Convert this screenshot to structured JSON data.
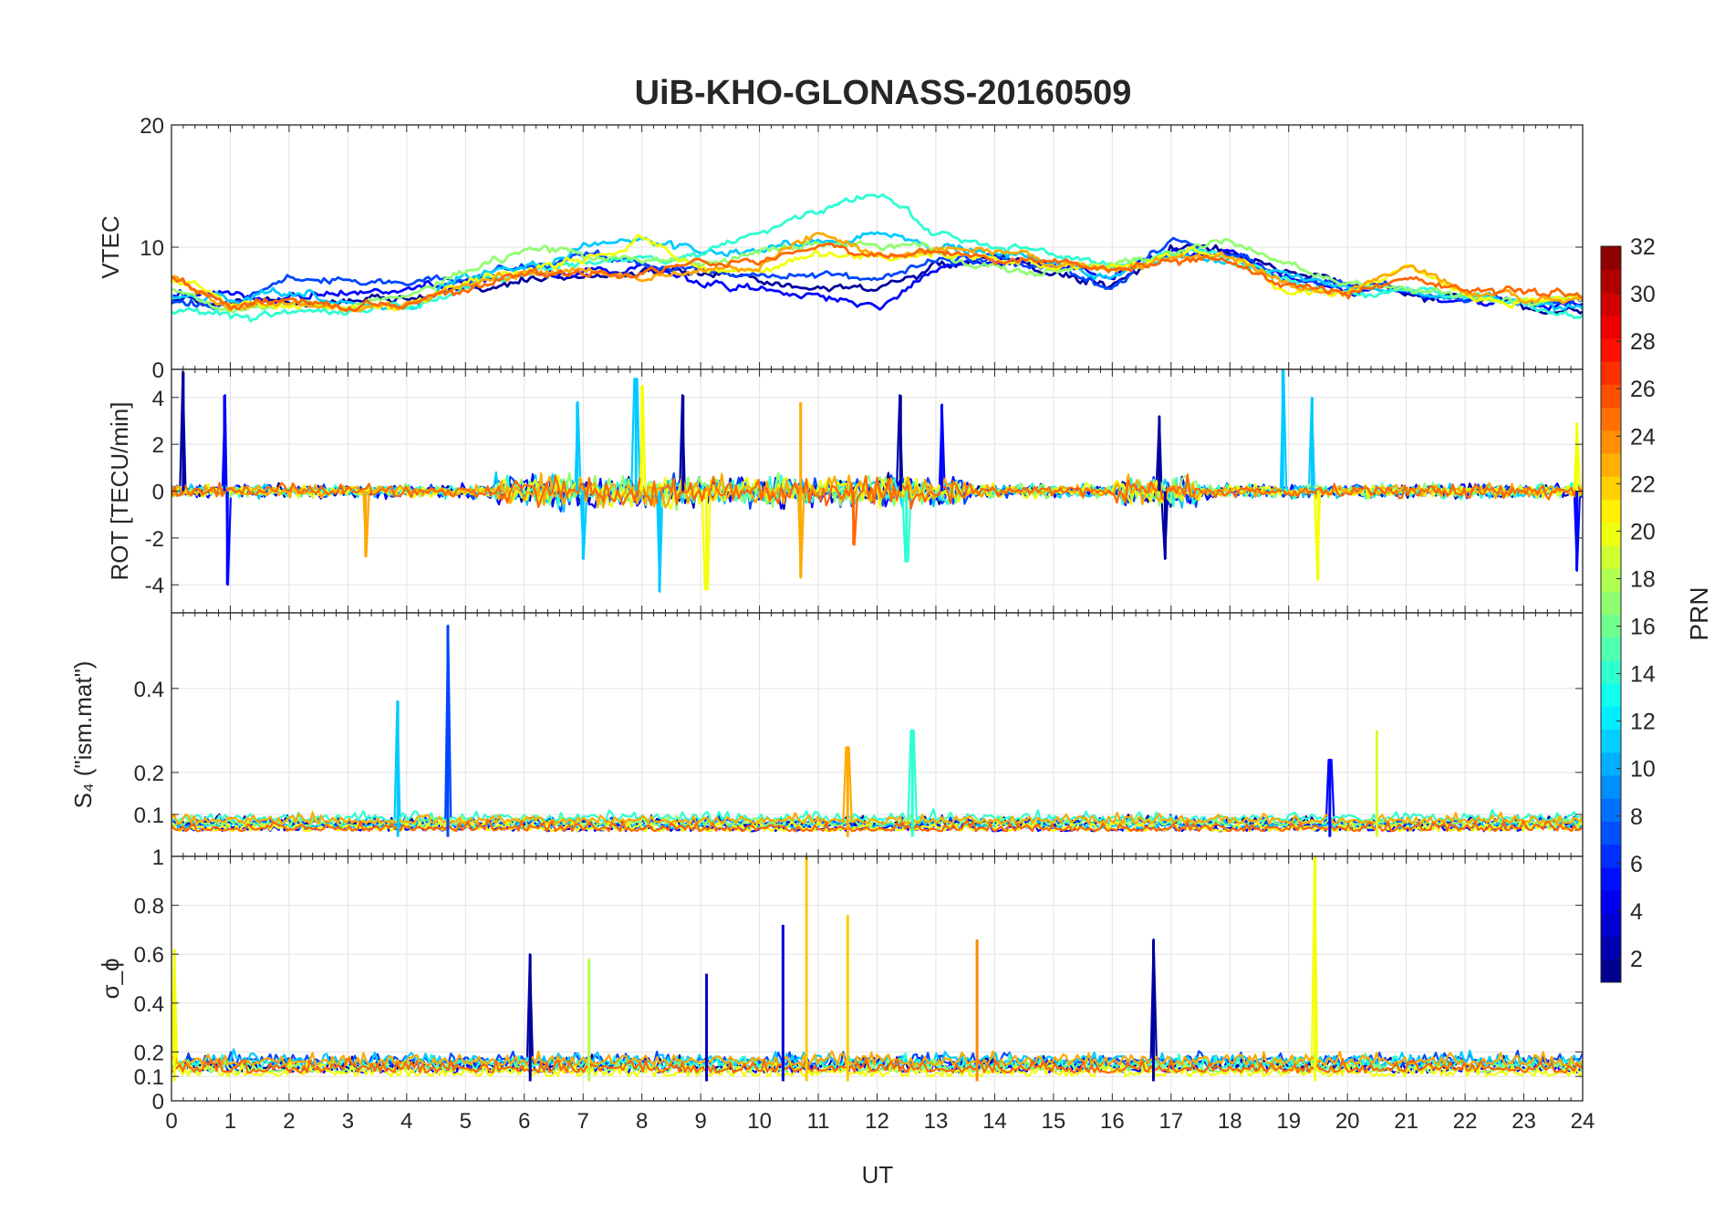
{
  "chart_data": {
    "type": "line",
    "title": "UiB-KHO-GLONASS-20160509",
    "xlabel": "UT",
    "xlim": [
      0,
      24
    ],
    "xticks": [
      0,
      1,
      2,
      3,
      4,
      5,
      6,
      7,
      8,
      9,
      10,
      11,
      12,
      13,
      14,
      15,
      16,
      17,
      18,
      19,
      20,
      21,
      22,
      23,
      24
    ],
    "grid": true,
    "panels": [
      {
        "id": "vtec",
        "ylabel": "VTEC",
        "ylim": [
          0,
          20
        ],
        "yticks": [
          0,
          10,
          20
        ],
        "series": [
          {
            "name": "PRN 2",
            "prn": 2,
            "x": [
              0,
              1,
              2,
              3,
              4,
              5,
              6,
              7,
              8,
              9,
              10,
              11,
              12,
              13,
              14,
              15,
              16,
              17,
              18,
              19,
              20,
              21,
              22,
              23,
              24
            ],
            "values": [
              5.5,
              5.2,
              5.4,
              5.6,
              5.9,
              6.4,
              7.2,
              7.9,
              8.2,
              7.8,
              7.2,
              6.6,
              6.2,
              8.4,
              9.2,
              8.0,
              7.0,
              10.0,
              9.6,
              8.0,
              6.8,
              6.2,
              5.6,
              5.0,
              4.6
            ]
          },
          {
            "name": "PRN 5",
            "prn": 5,
            "x": [
              0,
              1,
              2,
              3,
              4,
              5,
              6,
              7,
              8,
              9,
              10,
              11,
              12,
              13,
              14,
              15,
              16,
              17,
              18,
              19,
              20,
              21,
              22,
              23,
              24
            ],
            "values": [
              6.0,
              5.8,
              5.9,
              6.1,
              6.5,
              7.0,
              7.5,
              8.1,
              8.4,
              7.3,
              6.4,
              6.0,
              5.4,
              8.2,
              9.0,
              8.4,
              7.6,
              9.8,
              9.4,
              7.5,
              6.6,
              6.0,
              5.5,
              5.4,
              5.0
            ]
          },
          {
            "name": "PRN 7",
            "prn": 7,
            "x": [
              0,
              1,
              2,
              3,
              4,
              5,
              6,
              7,
              8,
              9,
              10,
              11,
              12,
              13,
              14,
              15,
              16,
              17,
              18,
              19,
              20,
              21,
              22,
              23,
              24
            ],
            "values": [
              5.8,
              5.4,
              7.4,
              7.6,
              7.0,
              7.2,
              8.4,
              9.4,
              8.8,
              8.0,
              7.6,
              7.9,
              7.2,
              8.8,
              9.0,
              8.2,
              6.8,
              10.6,
              9.4,
              7.6,
              7.0,
              6.4,
              5.8,
              5.6,
              5.4
            ]
          },
          {
            "name": "PRN 11",
            "prn": 11,
            "x": [
              0,
              1,
              2,
              3,
              4,
              5,
              6,
              7,
              8,
              9,
              10,
              11,
              12,
              13,
              14,
              15,
              16,
              17,
              18,
              19,
              20,
              21,
              22,
              23,
              24
            ],
            "values": [
              5.9,
              5.7,
              5.9,
              5.6,
              5.2,
              7.6,
              8.4,
              9.8,
              10.8,
              9.6,
              10.0,
              10.5,
              11.0,
              10.3,
              9.6,
              8.6,
              7.6,
              9.6,
              9.0,
              7.6,
              6.6,
              6.6,
              6.0,
              5.6,
              5.2
            ]
          },
          {
            "name": "PRN 14",
            "prn": 14,
            "x": [
              0,
              1,
              2,
              3,
              4,
              5,
              6,
              7,
              8,
              9,
              10,
              11,
              12,
              13,
              14,
              15,
              16,
              17,
              18,
              19,
              20,
              21,
              22,
              23,
              24
            ],
            "values": [
              4.8,
              4.0,
              4.5,
              4.8,
              5.3,
              6.6,
              8.0,
              9.0,
              9.2,
              9.4,
              11.2,
              12.8,
              14.6,
              11.2,
              10.4,
              9.0,
              8.2,
              9.6,
              9.0,
              7.0,
              6.4,
              6.4,
              6.0,
              5.2,
              4.4
            ]
          },
          {
            "name": "PRN 17",
            "prn": 17,
            "x": [
              0,
              1,
              2,
              3,
              4,
              5,
              6,
              7,
              8,
              9,
              10,
              11,
              12,
              13,
              14,
              15,
              16,
              17,
              18,
              19,
              20,
              21,
              22,
              23,
              24
            ],
            "values": [
              6.8,
              5.0,
              5.4,
              5.2,
              5.8,
              8.0,
              9.8,
              9.4,
              9.2,
              8.8,
              9.6,
              10.2,
              10.0,
              9.8,
              8.2,
              7.8,
              8.8,
              9.4,
              10.4,
              8.4,
              6.6,
              6.8,
              6.2,
              5.8,
              5.6
            ]
          },
          {
            "name": "PRN 20",
            "prn": 20,
            "x": [
              0,
              1,
              2,
              3,
              4,
              5,
              6,
              7,
              8,
              9,
              10,
              11,
              12,
              13,
              14,
              15,
              16,
              17,
              18,
              19,
              20,
              21,
              22,
              23,
              24
            ],
            "values": [
              7.4,
              5.4,
              5.2,
              5.0,
              5.6,
              7.2,
              8.4,
              8.8,
              10.6,
              8.2,
              8.0,
              9.6,
              9.2,
              9.8,
              9.2,
              8.6,
              8.4,
              9.2,
              9.4,
              6.4,
              6.2,
              8.6,
              6.2,
              5.6,
              6.0
            ]
          },
          {
            "name": "PRN 23",
            "prn": 23,
            "x": [
              0,
              1,
              2,
              3,
              4,
              5,
              6,
              7,
              8,
              9,
              10,
              11,
              12,
              13,
              14,
              15,
              16,
              17,
              18,
              19,
              20,
              21,
              22,
              23,
              24
            ],
            "values": [
              7.8,
              4.8,
              5.4,
              5.2,
              5.4,
              6.6,
              7.8,
              8.0,
              7.6,
              8.2,
              8.4,
              11.2,
              9.2,
              9.8,
              9.6,
              8.8,
              8.2,
              9.4,
              9.2,
              7.0,
              6.0,
              8.8,
              6.4,
              6.0,
              5.8
            ]
          },
          {
            "name": "PRN 25",
            "prn": 25,
            "x": [
              0,
              1,
              2,
              3,
              4,
              5,
              6,
              7,
              8,
              9,
              10,
              11,
              12,
              13,
              14,
              15,
              16,
              17,
              18,
              19,
              20,
              21,
              22,
              23,
              24
            ],
            "values": [
              7.6,
              5.0,
              5.8,
              5.0,
              5.2,
              6.4,
              7.4,
              7.8,
              8.0,
              8.6,
              8.8,
              10.4,
              9.4,
              10.0,
              9.2,
              8.4,
              8.0,
              9.0,
              9.0,
              6.8,
              6.2,
              7.4,
              6.6,
              6.4,
              6.2
            ]
          }
        ]
      },
      {
        "id": "rot",
        "ylabel": "ROT [TECU/min]",
        "ylim": [
          -5.2,
          5.2
        ],
        "yticks": [
          -4,
          -2,
          0,
          2,
          4
        ],
        "spikes": [
          {
            "x": 0.2,
            "y": 5.1,
            "prn": 2
          },
          {
            "x": 0.9,
            "y": 4.1,
            "prn": 5
          },
          {
            "x": 0.95,
            "y": -4.0,
            "prn": 5
          },
          {
            "x": 3.3,
            "y": -2.8,
            "prn": 23
          },
          {
            "x": 6.9,
            "y": 3.8,
            "prn": 11
          },
          {
            "x": 7.0,
            "y": -2.9,
            "prn": 11
          },
          {
            "x": 7.9,
            "y": 4.8,
            "prn": 11
          },
          {
            "x": 8.0,
            "y": 4.5,
            "prn": 20
          },
          {
            "x": 8.3,
            "y": -4.3,
            "prn": 11
          },
          {
            "x": 8.7,
            "y": 4.1,
            "prn": 2
          },
          {
            "x": 9.1,
            "y": -4.2,
            "prn": 20
          },
          {
            "x": 10.7,
            "y": 3.8,
            "prn": 23
          },
          {
            "x": 10.7,
            "y": -3.7,
            "prn": 23
          },
          {
            "x": 11.6,
            "y": -2.3,
            "prn": 25
          },
          {
            "x": 12.4,
            "y": 4.1,
            "prn": 2
          },
          {
            "x": 12.5,
            "y": -3.0,
            "prn": 14
          },
          {
            "x": 13.1,
            "y": 3.7,
            "prn": 5
          },
          {
            "x": 16.8,
            "y": 3.2,
            "prn": 2
          },
          {
            "x": 16.9,
            "y": -2.9,
            "prn": 2
          },
          {
            "x": 18.9,
            "y": 5.5,
            "prn": 11
          },
          {
            "x": 19.4,
            "y": 4.0,
            "prn": 11
          },
          {
            "x": 19.5,
            "y": -3.8,
            "prn": 20
          },
          {
            "x": 23.9,
            "y": 2.9,
            "prn": 20
          },
          {
            "x": 23.9,
            "y": -3.4,
            "prn": 5
          }
        ]
      },
      {
        "id": "s4",
        "ylabel": "S₄ (\"ism.mat\")",
        "ylim": [
          0,
          0.58
        ],
        "yticks": [
          0.1,
          0.2,
          0.4
        ],
        "spikes": [
          {
            "x": 3.85,
            "y": 0.37,
            "prn": 11
          },
          {
            "x": 4.7,
            "y": 0.55,
            "prn": 7
          },
          {
            "x": 11.5,
            "y": 0.26,
            "prn": 23
          },
          {
            "x": 12.6,
            "y": 0.3,
            "prn": 14
          },
          {
            "x": 19.7,
            "y": 0.23,
            "prn": 5
          },
          {
            "x": 20.5,
            "y": 0.3,
            "prn": 19
          }
        ]
      },
      {
        "id": "sigma",
        "ylabel": "σ_ϕ",
        "ylim": [
          0,
          1
        ],
        "yticks": [
          0,
          0.1,
          0.2,
          0.4,
          0.6,
          0.8,
          1
        ],
        "spikes": [
          {
            "x": 0.05,
            "y": 0.62,
            "prn": 20
          },
          {
            "x": 6.1,
            "y": 0.6,
            "prn": 2
          },
          {
            "x": 7.1,
            "y": 0.58,
            "prn": 18
          },
          {
            "x": 9.1,
            "y": 0.52,
            "prn": 3
          },
          {
            "x": 10.4,
            "y": 0.72,
            "prn": 4
          },
          {
            "x": 10.8,
            "y": 1.0,
            "prn": 22
          },
          {
            "x": 11.5,
            "y": 0.76,
            "prn": 22
          },
          {
            "x": 13.7,
            "y": 0.66,
            "prn": 24
          },
          {
            "x": 16.7,
            "y": 0.66,
            "prn": 2
          },
          {
            "x": 19.45,
            "y": 1.0,
            "prn": 20
          }
        ]
      }
    ],
    "colorbar": {
      "label": "PRN",
      "range": [
        1,
        32
      ],
      "ticks": [
        2,
        4,
        6,
        8,
        10,
        12,
        14,
        16,
        18,
        20,
        22,
        24,
        26,
        28,
        30,
        32
      ],
      "colormap": "jet"
    }
  }
}
